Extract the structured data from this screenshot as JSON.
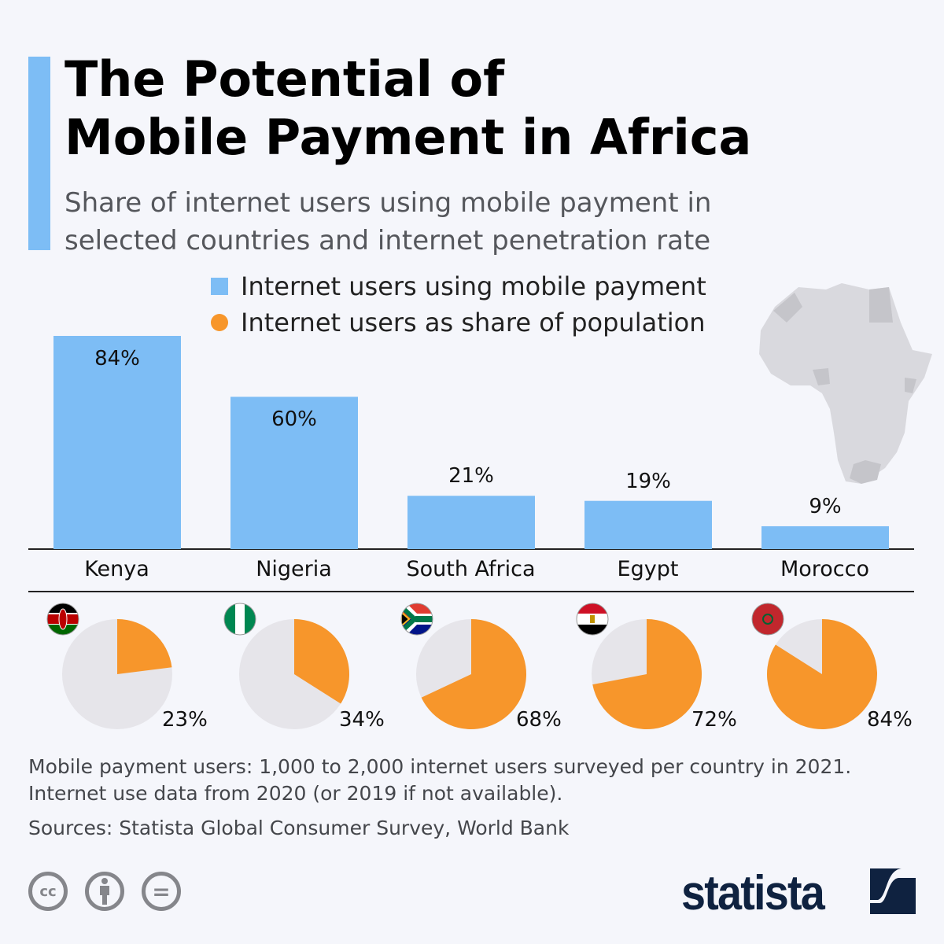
{
  "title_line1": "The Potential of",
  "title_line2": "Mobile Payment in Africa",
  "subtitle_line1": "Share of internet users using mobile payment in",
  "subtitle_line2": "selected countries and internet penetration rate",
  "colors": {
    "accent": "#7dbdf5",
    "bar": "#7dbdf5",
    "pie_orange": "#f7962b",
    "pie_gray": "#e6e5ea",
    "background": "#f5f6fb",
    "logo": "#0f2240"
  },
  "chart_data": [
    {
      "type": "bar",
      "series": [
        {
          "name": "Internet users using mobile payment",
          "values": [
            84,
            60,
            21,
            19,
            9
          ]
        }
      ],
      "categories": [
        "Kenya",
        "Nigeria",
        "South Africa",
        "Egypt",
        "Morocco"
      ],
      "data_labels": [
        "84%",
        "60%",
        "21%",
        "19%",
        "9%"
      ],
      "ylim": [
        0,
        100
      ],
      "grid": false,
      "legend_placement": "top"
    },
    {
      "type": "pie",
      "series": [
        {
          "name": "Internet users as share of population",
          "values": [
            23,
            34,
            68,
            72,
            84
          ]
        }
      ],
      "categories": [
        "Kenya",
        "Nigeria",
        "South Africa",
        "Egypt",
        "Morocco"
      ],
      "data_labels": [
        "23%",
        "34%",
        "68%",
        "72%",
        "84%"
      ]
    }
  ],
  "flags": [
    "kenya-flag",
    "nigeria-flag",
    "south-africa-flag",
    "egypt-flag",
    "morocco-flag"
  ],
  "notes": {
    "line1": "Mobile payment users: 1,000 to 2,000 internet users surveyed per country in 2021.",
    "line2": "Internet use data from 2020 (or 2019 if not available).",
    "sources": "Sources: Statista Global Consumer Survey, World Bank"
  },
  "license_icons": [
    "cc-icon",
    "attribution-icon",
    "no-derivatives-icon"
  ],
  "license_icon_text": {
    "cc": "cc",
    "eq": "="
  },
  "logo": "statista"
}
